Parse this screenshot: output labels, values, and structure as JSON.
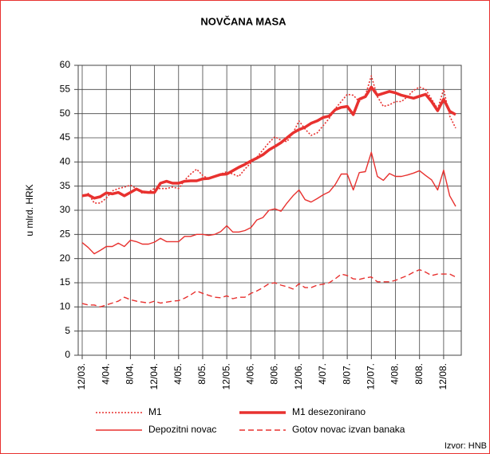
{
  "chart_data": {
    "type": "line",
    "title": "NOVČANA MASA",
    "y_label": "u mlrd. HRK",
    "source": "Izvor: HNB",
    "categories": [
      "12/03.",
      null,
      null,
      null,
      "4/04.",
      null,
      null,
      null,
      "8/04.",
      null,
      null,
      null,
      "12/04.",
      null,
      null,
      null,
      "4/05.",
      null,
      null,
      null,
      "8/05.",
      null,
      null,
      null,
      "12/05.",
      null,
      null,
      null,
      "4/06.",
      null,
      null,
      null,
      "8/06.",
      null,
      null,
      null,
      "12/06.",
      null,
      null,
      null,
      "4/07.",
      null,
      null,
      null,
      "8/07.",
      null,
      null,
      null,
      "12/07.",
      null,
      null,
      null,
      "4/08.",
      null,
      null,
      null,
      "8/08.",
      null,
      null,
      null,
      "12/08.",
      null,
      null
    ],
    "ylim": [
      0,
      60
    ],
    "yticks": [
      0,
      5,
      10,
      15,
      20,
      25,
      30,
      35,
      40,
      45,
      50,
      55,
      60
    ],
    "grid": true,
    "series": [
      {
        "name": "M1",
        "color": "#e8312f",
        "dash": "dotted",
        "width": 1.6,
        "values": [
          32.8,
          33.5,
          31.5,
          31.5,
          32.5,
          34,
          34.5,
          34.8,
          35.2,
          34.5,
          33.5,
          33.8,
          34.5,
          34.5,
          34.5,
          34.8,
          34.5,
          36.2,
          37.5,
          38.5,
          37.2,
          36.5,
          37,
          37.5,
          38,
          37.5,
          37,
          38.5,
          39.8,
          41,
          42.5,
          44,
          45.2,
          44.5,
          44.2,
          46,
          48.5,
          46.8,
          45.5,
          46,
          47.5,
          49,
          51,
          52.5,
          54,
          53.8,
          52.5,
          53.8,
          57.8,
          53.5,
          51.5,
          51.8,
          52.5,
          52.5,
          53.5,
          54.8,
          55.5,
          55,
          53,
          51,
          55,
          49.5,
          47
        ]
      },
      {
        "name": "M1 desezonirano",
        "color": "#e8312f",
        "dash": "solid",
        "width": 3.5,
        "values": [
          33,
          33.2,
          32.5,
          32.8,
          33.6,
          33.4,
          33.7,
          33,
          33.7,
          34.4,
          33.8,
          33.7,
          33.7,
          35.6,
          36,
          35.6,
          35.6,
          36,
          36.1,
          36.1,
          36.5,
          36.6,
          37,
          37.4,
          37.5,
          38.2,
          38.9,
          39.5,
          40.2,
          40.8,
          41.5,
          42.5,
          43.2,
          44,
          45,
          46,
          46.7,
          47.2,
          48,
          48.5,
          49.2,
          49.5,
          50.8,
          51.3,
          51.5,
          49.8,
          53,
          53.5,
          55.5,
          53.8,
          54.2,
          54.6,
          54.3,
          53.8,
          53.5,
          53.2,
          53.6,
          54,
          52.5,
          50.6,
          53,
          50.5,
          49.8
        ]
      },
      {
        "name": "Depozitni novac",
        "color": "#e8312f",
        "dash": "solid",
        "width": 1.4,
        "values": [
          23.3,
          22.3,
          21,
          21.7,
          22.5,
          22.5,
          23.2,
          22.5,
          23.8,
          23.5,
          23,
          23,
          23.4,
          24.2,
          23.5,
          23.5,
          23.5,
          24.6,
          24.6,
          25,
          25,
          24.8,
          25,
          25.6,
          26.8,
          25.5,
          25.5,
          25.8,
          26.4,
          28,
          28.5,
          30,
          30.3,
          29.8,
          31.5,
          33,
          34.2,
          32.2,
          31.7,
          32.4,
          33.2,
          33.8,
          35.3,
          37.5,
          37.5,
          34.2,
          37.8,
          38,
          42,
          37,
          36.2,
          37.6,
          37,
          37,
          37.3,
          37.7,
          38.2,
          37.2,
          36.3,
          34.2,
          38.3,
          33,
          30.8
        ]
      },
      {
        "name": "Gotov novac izvan banaka",
        "color": "#e8312f",
        "dash": "dashed",
        "width": 1.4,
        "values": [
          10.7,
          10.4,
          10.4,
          10,
          10.4,
          10.8,
          11.2,
          12,
          11.5,
          11.2,
          11,
          10.8,
          11.2,
          10.8,
          11,
          11.2,
          11.3,
          11.8,
          12.5,
          13.3,
          12.8,
          12.4,
          12,
          11.9,
          12.3,
          11.7,
          12,
          12,
          12.8,
          13.3,
          14,
          14.8,
          15,
          14.5,
          14.2,
          13.7,
          14.8,
          14,
          14,
          14.5,
          14.7,
          15,
          15.8,
          16.8,
          16.5,
          15.8,
          15.7,
          16,
          16.2,
          15.2,
          15.2,
          15.2,
          15.5,
          16,
          16.5,
          17.2,
          17.7,
          17.2,
          16.5,
          16.8,
          16.8,
          16.8,
          16.2
        ]
      }
    ]
  }
}
